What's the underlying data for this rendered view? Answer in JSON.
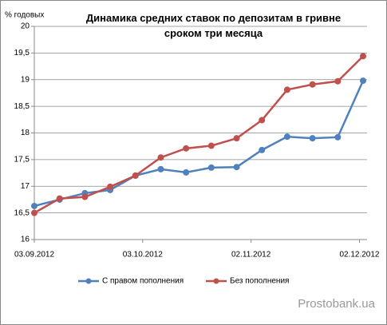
{
  "chart_data": {
    "type": "line",
    "title": "Динамика средних ставок по депозитам в гривне сроком три месяца",
    "ylabel": "% годовых",
    "x": [
      "03.09.2012",
      "10.09.2012",
      "17.09.2012",
      "24.09.2012",
      "01.10.2012",
      "08.10.2012",
      "15.10.2012",
      "22.10.2012",
      "29.10.2012",
      "05.11.2012",
      "12.11.2012",
      "19.11.2012",
      "26.11.2012",
      "03.12.2012"
    ],
    "xlim": [
      "03.09.2012",
      "03.12.2012"
    ],
    "xticks": [
      "03.09.2012",
      "03.10.2012",
      "02.11.2012",
      "02.12.2012"
    ],
    "series": [
      {
        "name": "С правом пополнения",
        "color": "#4f81bd",
        "values": [
          16.63,
          16.75,
          16.87,
          16.93,
          17.2,
          17.32,
          17.26,
          17.35,
          17.36,
          17.68,
          17.93,
          17.9,
          17.92,
          18.98
        ]
      },
      {
        "name": "Без пополнения",
        "color": "#c0504d",
        "values": [
          16.5,
          16.77,
          16.8,
          16.99,
          17.2,
          17.54,
          17.71,
          17.76,
          17.9,
          18.24,
          18.81,
          18.91,
          18.97,
          19.44
        ]
      }
    ],
    "ylim": [
      16,
      20
    ],
    "yticks": [
      16,
      {
        "value": 16.5,
        "label": "16,5"
      },
      17,
      {
        "value": 17.5,
        "label": "17,5"
      },
      18,
      {
        "value": 18.5,
        "label": "18,5"
      },
      19,
      {
        "value": 19.5,
        "label": "19,5"
      },
      20
    ],
    "grid": true,
    "legend": "bottom",
    "watermark": "Prostobank.ua"
  }
}
